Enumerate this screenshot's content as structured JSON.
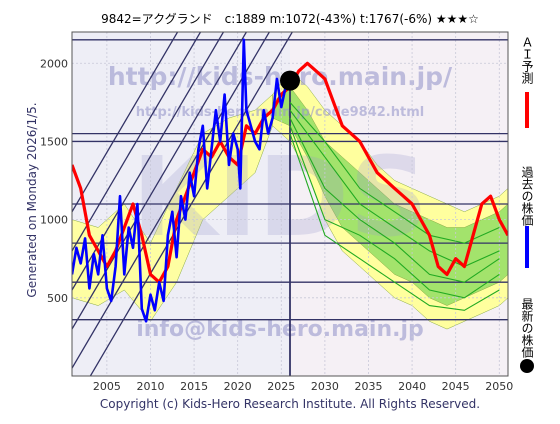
{
  "header": {
    "text": "9842=アクグランド　c:1889  m:1072(-43%)  t:1767(-6%)  ★★★☆"
  },
  "watermark": {
    "url": "http://kids-hero.main.jp/",
    "sub_url": "http://kids-hero.main.jp/code9842.html",
    "big": "KIDS",
    "email": "info@kids-hero.main.jp"
  },
  "side_label": "Generated on Monday 2026/1/5.",
  "footer": "Copyright (c) Kids-Hero Research Institute. All Rights Reserved.",
  "legend": [
    {
      "label": "ＡＩ予測",
      "color": "#ff0000",
      "marker": "line"
    },
    {
      "label": "過去の株価",
      "color": "#0000ff",
      "marker": "line"
    },
    {
      "label": "最新の株価",
      "color": "#000000",
      "marker": "dot"
    }
  ],
  "chart_data": {
    "type": "line",
    "title": "9842=アクグランド　c:1889  m:1072(-43%)  t:1767(-6%)  ★★★☆",
    "xlabel": "",
    "ylabel": "",
    "xlim": [
      2001,
      2051
    ],
    "ylim": [
      0,
      2200
    ],
    "x_ticks": [
      2005,
      2010,
      2015,
      2020,
      2025,
      2030,
      2035,
      2040,
      2045,
      2050
    ],
    "y_ticks": [
      500,
      1000,
      1500,
      2000
    ],
    "grid": true,
    "legend_position": "right",
    "current": {
      "x": 2026.0,
      "y": 1889
    },
    "marker_x": 2026.0,
    "horizontal_levels": [
      2150,
      1550,
      1500,
      1100,
      850,
      600,
      360
    ],
    "trend_channel": {
      "slope_per_year": 95,
      "intercepts_at_2001": [
        -200,
        50,
        300,
        550,
        800,
        1050
      ]
    },
    "history": [
      [
        2001.0,
        650
      ],
      [
        2001.5,
        820
      ],
      [
        2002.0,
        720
      ],
      [
        2002.5,
        880
      ],
      [
        2003.0,
        560
      ],
      [
        2003.5,
        780
      ],
      [
        2004.0,
        650
      ],
      [
        2004.5,
        900
      ],
      [
        2005.0,
        560
      ],
      [
        2005.5,
        480
      ],
      [
        2006.0,
        700
      ],
      [
        2006.5,
        1150
      ],
      [
        2007.0,
        650
      ],
      [
        2007.5,
        950
      ],
      [
        2008.0,
        820
      ],
      [
        2008.5,
        1100
      ],
      [
        2009.0,
        430
      ],
      [
        2009.5,
        350
      ],
      [
        2010.0,
        520
      ],
      [
        2010.5,
        420
      ],
      [
        2011.0,
        600
      ],
      [
        2011.5,
        480
      ],
      [
        2012.0,
        900
      ],
      [
        2012.5,
        1050
      ],
      [
        2013.0,
        760
      ],
      [
        2013.5,
        1150
      ],
      [
        2014.0,
        1000
      ],
      [
        2014.5,
        1300
      ],
      [
        2015.0,
        1150
      ],
      [
        2015.5,
        1450
      ],
      [
        2016.0,
        1600
      ],
      [
        2016.5,
        1200
      ],
      [
        2017.0,
        1450
      ],
      [
        2017.5,
        1700
      ],
      [
        2018.0,
        1500
      ],
      [
        2018.5,
        1800
      ],
      [
        2019.0,
        1350
      ],
      [
        2019.5,
        1550
      ],
      [
        2020.0,
        1450
      ],
      [
        2020.3,
        1200
      ],
      [
        2020.7,
        2150
      ],
      [
        2021.0,
        1700
      ],
      [
        2021.5,
        1600
      ],
      [
        2022.0,
        1500
      ],
      [
        2022.5,
        1450
      ],
      [
        2023.0,
        1700
      ],
      [
        2023.5,
        1550
      ],
      [
        2024.0,
        1650
      ],
      [
        2024.5,
        1900
      ],
      [
        2025.0,
        1720
      ],
      [
        2025.5,
        1850
      ],
      [
        2026.0,
        1889
      ]
    ],
    "ai_forecast": [
      [
        2001.0,
        1350
      ],
      [
        2002.0,
        1200
      ],
      [
        2003.0,
        900
      ],
      [
        2004.0,
        800
      ],
      [
        2005.0,
        700
      ],
      [
        2006.0,
        800
      ],
      [
        2007.0,
        950
      ],
      [
        2008.0,
        1100
      ],
      [
        2009.0,
        900
      ],
      [
        2010.0,
        650
      ],
      [
        2011.0,
        600
      ],
      [
        2012.0,
        700
      ],
      [
        2013.0,
        1000
      ],
      [
        2014.0,
        1150
      ],
      [
        2015.0,
        1300
      ],
      [
        2016.0,
        1450
      ],
      [
        2017.0,
        1400
      ],
      [
        2018.0,
        1500
      ],
      [
        2019.0,
        1400
      ],
      [
        2020.0,
        1350
      ],
      [
        2021.0,
        1600
      ],
      [
        2022.0,
        1550
      ],
      [
        2023.0,
        1650
      ],
      [
        2024.0,
        1700
      ],
      [
        2025.0,
        1800
      ],
      [
        2026.0,
        1850
      ],
      [
        2027.0,
        1950
      ],
      [
        2028.0,
        2000
      ],
      [
        2029.0,
        1950
      ],
      [
        2030.0,
        1900
      ],
      [
        2031.0,
        1750
      ],
      [
        2032.0,
        1600
      ],
      [
        2033.0,
        1550
      ],
      [
        2034.0,
        1500
      ],
      [
        2035.0,
        1400
      ],
      [
        2036.0,
        1300
      ],
      [
        2037.0,
        1250
      ],
      [
        2038.0,
        1200
      ],
      [
        2039.0,
        1150
      ],
      [
        2040.0,
        1100
      ],
      [
        2041.0,
        1000
      ],
      [
        2042.0,
        900
      ],
      [
        2043.0,
        700
      ],
      [
        2044.0,
        650
      ],
      [
        2045.0,
        750
      ],
      [
        2046.0,
        700
      ],
      [
        2047.0,
        900
      ],
      [
        2048.0,
        1100
      ],
      [
        2049.0,
        1150
      ],
      [
        2050.0,
        1000
      ],
      [
        2051.0,
        900
      ]
    ],
    "forecast_band_outer": {
      "x": [
        2024,
        2026,
        2028,
        2030,
        2032,
        2034,
        2036,
        2038,
        2040,
        2042,
        2044,
        2046,
        2048,
        2050,
        2051
      ],
      "upper": [
        1800,
        1950,
        1850,
        1700,
        1600,
        1500,
        1350,
        1250,
        1200,
        1150,
        1100,
        1050,
        1100,
        1150,
        1200
      ],
      "lower": [
        1600,
        1500,
        1300,
        1000,
        800,
        700,
        600,
        500,
        450,
        350,
        300,
        350,
        400,
        450,
        500
      ]
    },
    "forecast_band_inner": {
      "x": [
        2024,
        2026,
        2028,
        2030,
        2032,
        2034,
        2036,
        2038,
        2040,
        2042,
        2044,
        2046,
        2048,
        2050,
        2051
      ],
      "upper": [
        1750,
        1850,
        1700,
        1500,
        1400,
        1300,
        1200,
        1100,
        1050,
        1000,
        950,
        950,
        1000,
        1050,
        1100
      ],
      "lower": [
        1650,
        1600,
        1400,
        1150,
        950,
        850,
        750,
        650,
        600,
        500,
        450,
        500,
        550,
        600,
        650
      ]
    },
    "history_band": {
      "x": [
        2001,
        2004,
        2007,
        2010,
        2013,
        2016,
        2019,
        2022,
        2024
      ],
      "upper": [
        1000,
        950,
        1100,
        850,
        1200,
        1550,
        1650,
        1700,
        1800
      ],
      "lower": [
        500,
        450,
        550,
        350,
        600,
        1000,
        1150,
        1300,
        1600
      ]
    },
    "forecast_scenarios": [
      [
        [
          2026,
          1700
        ],
        [
          2030,
          1400
        ],
        [
          2034,
          1100
        ],
        [
          2038,
          950
        ],
        [
          2042,
          800
        ],
        [
          2046,
          700
        ],
        [
          2050,
          800
        ]
      ],
      [
        [
          2026,
          1650
        ],
        [
          2030,
          1200
        ],
        [
          2034,
          1000
        ],
        [
          2038,
          850
        ],
        [
          2042,
          650
        ],
        [
          2046,
          600
        ],
        [
          2050,
          750
        ]
      ],
      [
        [
          2026,
          1600
        ],
        [
          2030,
          1000
        ],
        [
          2034,
          900
        ],
        [
          2038,
          750
        ],
        [
          2042,
          550
        ],
        [
          2046,
          500
        ],
        [
          2050,
          650
        ]
      ],
      [
        [
          2026,
          1750
        ],
        [
          2030,
          1500
        ],
        [
          2034,
          1200
        ],
        [
          2038,
          1050
        ],
        [
          2042,
          900
        ],
        [
          2046,
          850
        ],
        [
          2050,
          950
        ]
      ],
      [
        [
          2026,
          1550
        ],
        [
          2030,
          900
        ],
        [
          2034,
          750
        ],
        [
          2038,
          600
        ],
        [
          2042,
          450
        ],
        [
          2046,
          420
        ],
        [
          2050,
          550
        ]
      ]
    ],
    "colors": {
      "forecast": "#ff0000",
      "history": "#0000ff",
      "band_outer": "#ffff99",
      "band_inner": "#99e066",
      "scenario": "#22aa22",
      "guide": "#333366",
      "watermark": "#9999cc",
      "text": "#333366"
    }
  }
}
